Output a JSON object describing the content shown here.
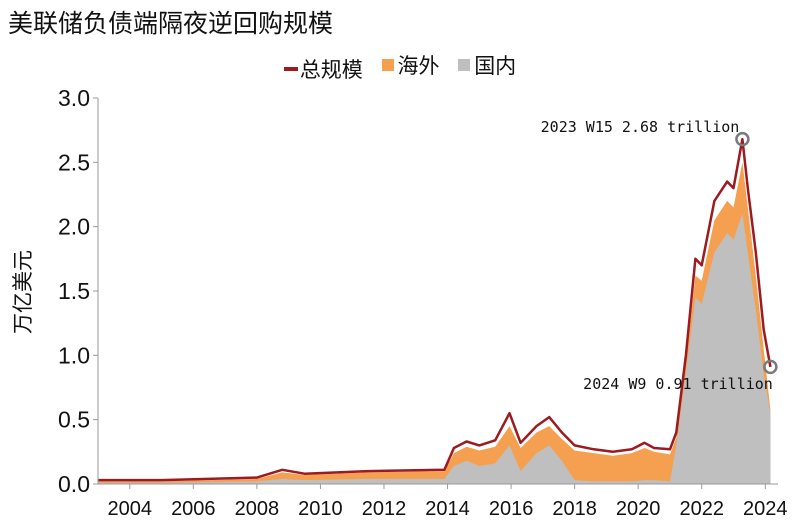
{
  "chart_data": {
    "type": "area",
    "title": "美联储负债端隔夜逆回购规模",
    "ylabel": "万亿美元",
    "xlabel": "",
    "ylim": [
      0,
      3.0
    ],
    "xlim": [
      2003.0,
      2024.4
    ],
    "yticks": [
      "0.0",
      "0.5",
      "1.0",
      "1.5",
      "2.0",
      "2.5",
      "3.0"
    ],
    "xticks": [
      "2004",
      "2006",
      "2008",
      "2010",
      "2012",
      "2014",
      "2016",
      "2018",
      "2020",
      "2022",
      "2024"
    ],
    "legend_position": "top-center",
    "grid": false,
    "colors": {
      "total": "#9b1b20",
      "overseas": "#f4a050",
      "domestic": "#bfbfbf"
    },
    "series": [
      {
        "name": "总规模",
        "x": [
          2003.0,
          2005.0,
          2008.0,
          2008.8,
          2009.5,
          2011.5,
          2013.9,
          2014.2,
          2014.6,
          2015.0,
          2015.5,
          2015.95,
          2016.3,
          2016.8,
          2017.2,
          2017.6,
          2018.0,
          2018.6,
          2019.2,
          2019.8,
          2020.2,
          2020.5,
          2021.0,
          2021.2,
          2021.5,
          2021.8,
          2022.0,
          2022.4,
          2022.8,
          2023.0,
          2023.28,
          2023.45,
          2023.7,
          2023.95,
          2024.16
        ],
        "values": [
          0.03,
          0.03,
          0.05,
          0.11,
          0.08,
          0.1,
          0.11,
          0.28,
          0.33,
          0.3,
          0.34,
          0.55,
          0.32,
          0.45,
          0.52,
          0.4,
          0.3,
          0.27,
          0.25,
          0.27,
          0.32,
          0.28,
          0.27,
          0.4,
          1.0,
          1.75,
          1.7,
          2.2,
          2.35,
          2.3,
          2.68,
          2.3,
          1.8,
          1.2,
          0.91
        ]
      },
      {
        "name": "海外",
        "x": [
          2003.0,
          2005.0,
          2008.0,
          2008.8,
          2009.5,
          2011.5,
          2013.9,
          2014.2,
          2014.6,
          2015.0,
          2015.5,
          2015.95,
          2016.3,
          2016.8,
          2017.2,
          2017.6,
          2018.0,
          2018.6,
          2019.2,
          2019.8,
          2020.2,
          2020.5,
          2021.0,
          2021.2,
          2021.5,
          2021.8,
          2022.0,
          2022.4,
          2022.8,
          2023.0,
          2023.28,
          2023.45,
          2023.7,
          2023.95,
          2024.16
        ],
        "values": [
          0.02,
          0.02,
          0.04,
          0.09,
          0.07,
          0.09,
          0.1,
          0.24,
          0.29,
          0.26,
          0.29,
          0.45,
          0.28,
          0.4,
          0.45,
          0.35,
          0.26,
          0.24,
          0.22,
          0.24,
          0.28,
          0.25,
          0.23,
          0.36,
          0.93,
          1.62,
          1.58,
          2.05,
          2.2,
          2.15,
          2.5,
          2.15,
          1.62,
          1.05,
          0.58
        ]
      },
      {
        "name": "国内",
        "x": [
          2003.0,
          2005.0,
          2008.0,
          2008.8,
          2009.5,
          2011.5,
          2013.9,
          2014.2,
          2014.6,
          2015.0,
          2015.5,
          2015.95,
          2016.3,
          2016.8,
          2017.2,
          2017.6,
          2018.0,
          2018.6,
          2019.2,
          2019.8,
          2020.2,
          2020.5,
          2021.0,
          2021.2,
          2021.5,
          2021.8,
          2022.0,
          2022.4,
          2022.8,
          2023.0,
          2023.28,
          2023.45,
          2023.7,
          2023.95,
          2024.16
        ],
        "values": [
          0.01,
          0.01,
          0.02,
          0.04,
          0.03,
          0.04,
          0.04,
          0.14,
          0.18,
          0.14,
          0.16,
          0.3,
          0.1,
          0.24,
          0.3,
          0.18,
          0.03,
          0.02,
          0.02,
          0.02,
          0.03,
          0.03,
          0.02,
          0.3,
          0.86,
          1.45,
          1.4,
          1.8,
          1.95,
          1.9,
          2.1,
          1.8,
          1.35,
          0.85,
          0.55
        ]
      }
    ],
    "annotations": [
      {
        "text": "2023 W15 2.68 trillion",
        "x": 2023.28,
        "y": 2.68
      },
      {
        "text": "2024 W9 0.91 trillion",
        "x": 2024.16,
        "y": 0.91
      }
    ]
  }
}
